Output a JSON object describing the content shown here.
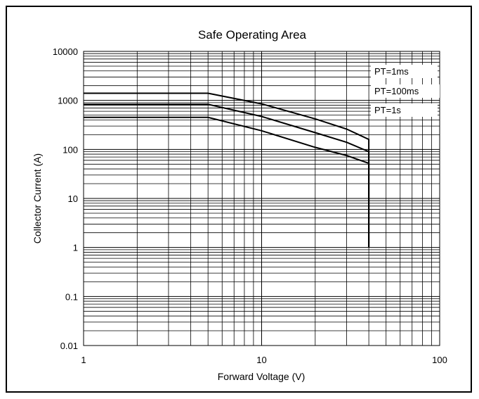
{
  "chart_data": {
    "type": "line",
    "title": "Safe Operating Area",
    "xlabel": "Forward Voltage (V)",
    "ylabel": "Collector Current (A)",
    "xscale": "log",
    "yscale": "log",
    "xlim": [
      1,
      100
    ],
    "ylim": [
      0.01,
      10000
    ],
    "x_ticks": [
      "1",
      "10",
      "100"
    ],
    "y_ticks": [
      "0.01",
      "0.1",
      "1",
      "10",
      "100",
      "1000",
      "10000"
    ],
    "grid": true,
    "legend_position": "top-right",
    "series": [
      {
        "name": "PT=1ms",
        "x": [
          1,
          5,
          10,
          20,
          30,
          40,
          40
        ],
        "y": [
          1400,
          1400,
          850,
          420,
          260,
          160,
          1
        ]
      },
      {
        "name": "PT=100ms",
        "x": [
          1,
          5,
          10,
          20,
          30,
          40,
          40
        ],
        "y": [
          830,
          830,
          470,
          220,
          140,
          90,
          1
        ]
      },
      {
        "name": "PT=1s",
        "x": [
          1,
          5,
          10,
          20,
          30,
          40,
          40
        ],
        "y": [
          450,
          450,
          240,
          110,
          75,
          52,
          1
        ]
      }
    ]
  }
}
